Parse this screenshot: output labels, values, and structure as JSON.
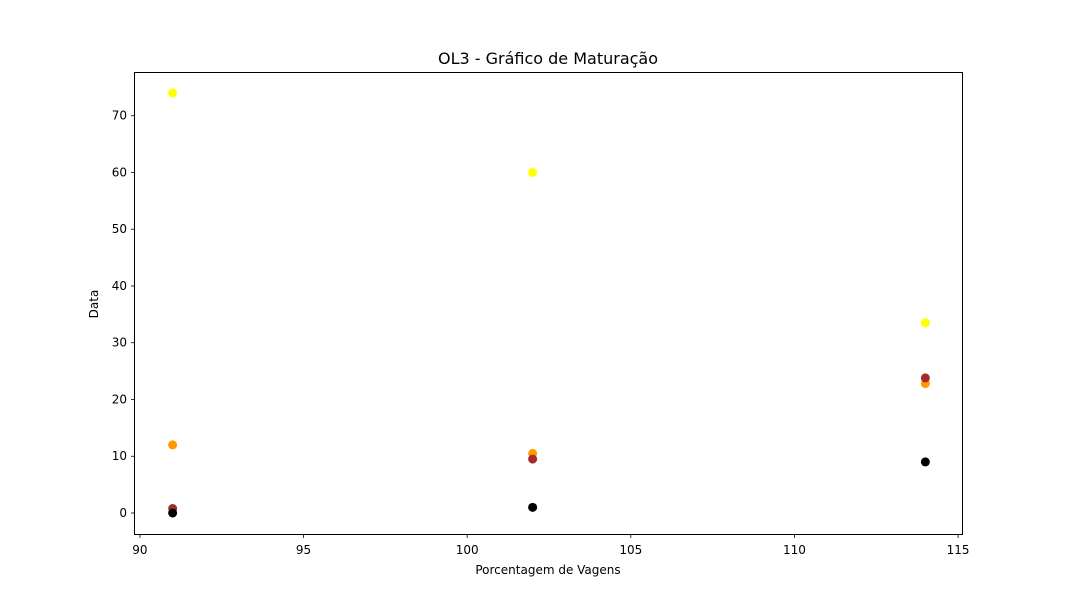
{
  "chart_data": {
    "type": "scatter",
    "title": "OL3 - Gráfico de Maturação",
    "xlabel": "Porcentagem de Vagens",
    "ylabel": "Data",
    "xlim": [
      89.85,
      115.15
    ],
    "ylim": [
      -3.7,
      77.7
    ],
    "x_ticks": [
      90,
      95,
      100,
      105,
      110,
      115
    ],
    "y_ticks": [
      0,
      10,
      20,
      30,
      40,
      50,
      60,
      70
    ],
    "grid": false,
    "legend": null,
    "series": [
      {
        "color": "#ffff00",
        "points": [
          {
            "x": 91,
            "y": 74
          },
          {
            "x": 102,
            "y": 60
          },
          {
            "x": 114,
            "y": 33.5
          }
        ]
      },
      {
        "color": "#ff9900",
        "points": [
          {
            "x": 91,
            "y": 12
          },
          {
            "x": 102,
            "y": 10.5
          },
          {
            "x": 114,
            "y": 22.8
          }
        ]
      },
      {
        "color": "#a52a2a",
        "points": [
          {
            "x": 91,
            "y": 0.8
          },
          {
            "x": 102,
            "y": 9.5
          },
          {
            "x": 114,
            "y": 23.8
          }
        ]
      },
      {
        "color": "#000000",
        "points": [
          {
            "x": 91,
            "y": 0
          },
          {
            "x": 102,
            "y": 1
          },
          {
            "x": 114,
            "y": 9
          }
        ]
      }
    ]
  }
}
